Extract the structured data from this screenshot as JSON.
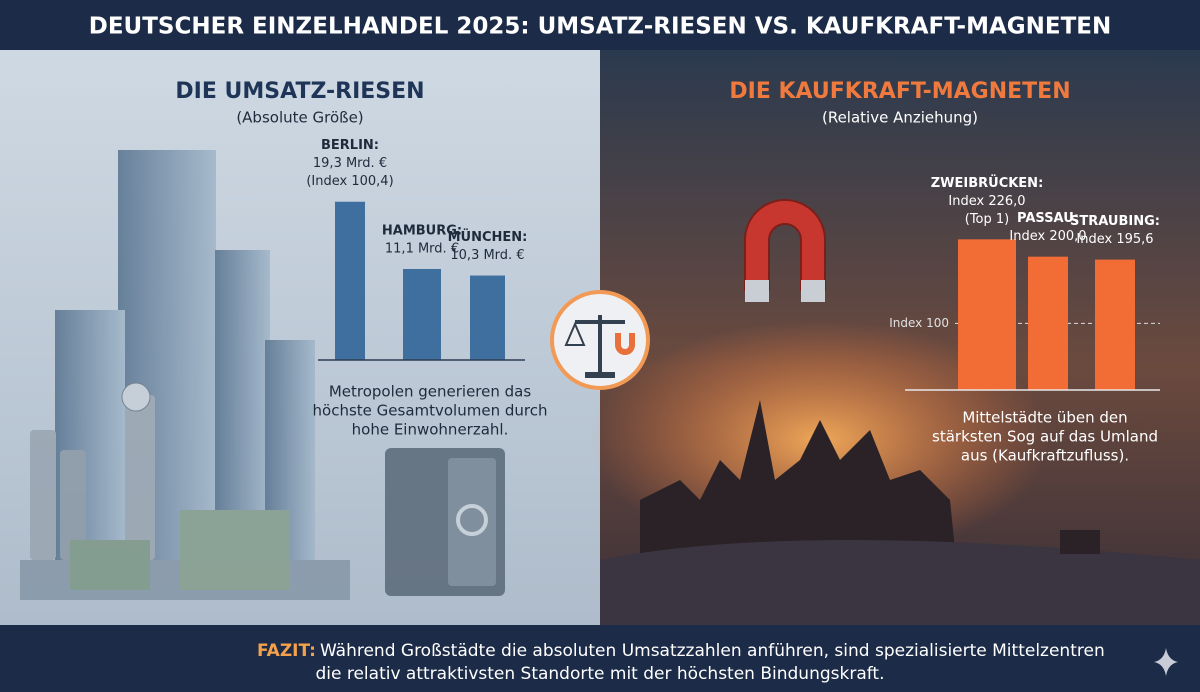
{
  "header": {
    "title": "DEUTSCHER EINZELHANDEL 2025: UMSATZ-RIESEN VS. KAUFKRAFT-MAGNETEN"
  },
  "chart_data": [
    {
      "type": "bar",
      "title": "DIE UMSATZ-RIESEN",
      "subtitle": "(Absolute Größe)",
      "categories": [
        "BERLIN:",
        "HAMBURG:",
        "MÜNCHEN:"
      ],
      "values": [
        19.3,
        11.1,
        10.3
      ],
      "value_labels": [
        "19,3 Mrd. €",
        "11,1 Mrd. €",
        "10,3 Mrd. €"
      ],
      "annotations": [
        {
          "category": "BERLIN:",
          "text": "(Index 100,4)"
        }
      ],
      "color": "#3f6f9f",
      "ylim": [
        0,
        20
      ],
      "caption": [
        "Metropolen generieren das",
        "höchste Gesamtvolumen durch",
        "hohe Einwohnerzahl."
      ]
    },
    {
      "type": "bar",
      "title": "DIE KAUFKRAFT-MAGNETEN",
      "subtitle": "(Relative Anziehung)",
      "categories": [
        "ZWEIBRÜCKEN:",
        "PASSAU:",
        "STRAUBING:"
      ],
      "values": [
        226.0,
        200.0,
        195.6
      ],
      "value_labels": [
        "Index 226,0",
        "Index 200,0",
        "Index 195,6"
      ],
      "annotations": [
        {
          "category": "ZWEIBRÜCKEN:",
          "text": "(Top 1)"
        }
      ],
      "reference_line": {
        "value": 100,
        "label": "Index 100"
      },
      "color": "#f26c36",
      "ylim": [
        0,
        240
      ],
      "caption": [
        "Mittelstädte üben den",
        "stärksten Sog auf das Umland",
        "aus (Kaufkraftzufluss)."
      ]
    }
  ],
  "footer": {
    "label": "FAZIT:",
    "lines": [
      "Während Großstädte die absoluten Umsatzzahlen anführen, sind spezialisierte Mittelzentren",
      "die relativ attraktivsten Standorte mit der höchsten Bindungskraft."
    ]
  }
}
